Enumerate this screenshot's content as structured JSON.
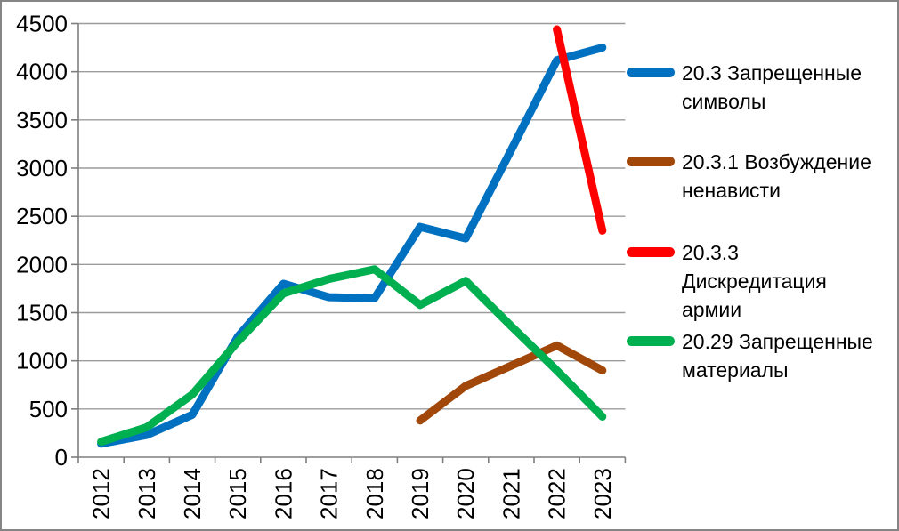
{
  "chart_data": {
    "type": "line",
    "x": [
      "2012",
      "2013",
      "2014",
      "2015",
      "2016",
      "2017",
      "2018",
      "2019",
      "2020",
      "2021",
      "2022",
      "2023"
    ],
    "series": [
      {
        "name": "20.3 Запрещенные символы",
        "label_lines": [
          "20.3 Запрещенные",
          "символы"
        ],
        "color": "#0070C0",
        "values": [
          140,
          230,
          440,
          1250,
          1800,
          1660,
          1650,
          2390,
          2270,
          3190,
          4120,
          4250
        ]
      },
      {
        "name": "20.3.1 Возбуждение ненависти",
        "label_lines": [
          "20.3.1 Возбуждение",
          "ненависти"
        ],
        "color": "#A04709",
        "values": [
          null,
          null,
          null,
          null,
          null,
          null,
          null,
          380,
          740,
          950,
          1160,
          900
        ]
      },
      {
        "name": "20.3.3 Дискредитация армии",
        "label_lines": [
          "20.3.3",
          "Дискредитация",
          "армии"
        ],
        "color": "#FF0000",
        "values": [
          null,
          null,
          null,
          null,
          null,
          null,
          null,
          null,
          null,
          null,
          4440,
          2350
        ]
      },
      {
        "name": "20.29 Запрещенные материалы",
        "label_lines": [
          "20.29 Запрещенные",
          "материалы"
        ],
        "color": "#00B050",
        "values": [
          160,
          310,
          650,
          1200,
          1700,
          1850,
          1950,
          1580,
          1830,
          1360,
          900,
          420
        ]
      }
    ],
    "title": "",
    "xlabel": "",
    "ylabel": "",
    "ylim": [
      0,
      4500
    ],
    "yticks": [
      0,
      500,
      1000,
      1500,
      2000,
      2500,
      3000,
      3500,
      4000,
      4500
    ],
    "grid": "horizontal",
    "legend_position": "right",
    "colors": {
      "gridline": "#9B9B9B",
      "axis": "#7F7F7F",
      "text": "#000000"
    }
  }
}
